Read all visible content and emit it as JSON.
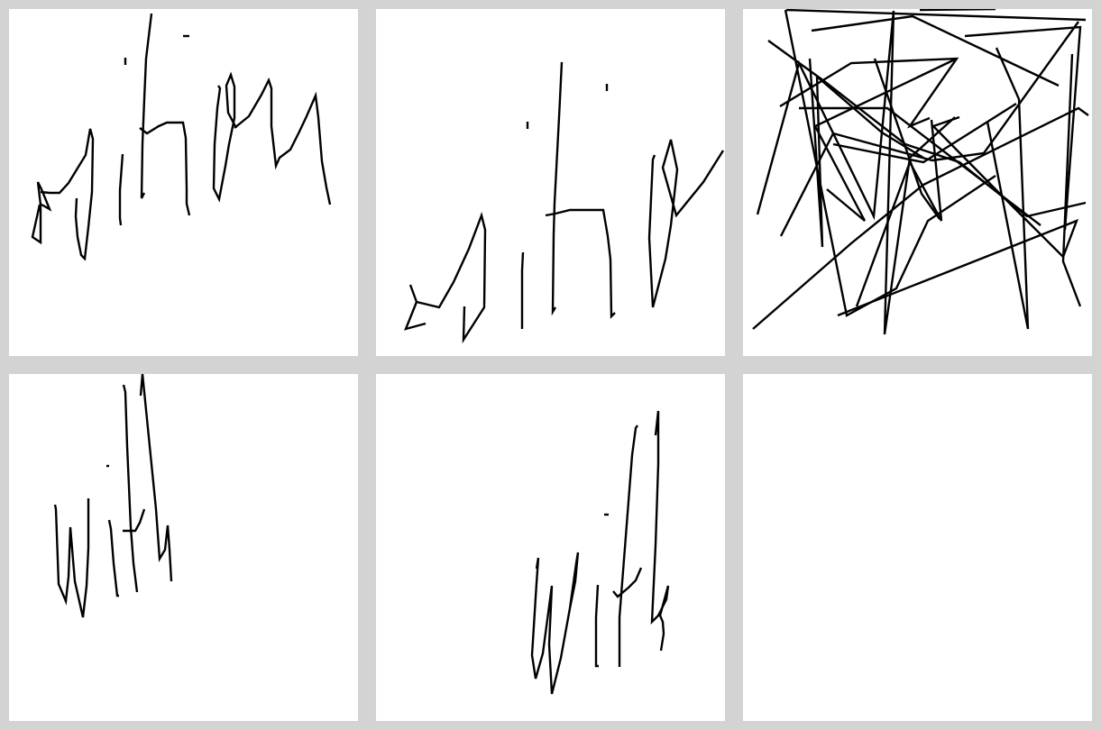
{
  "canvas": {
    "background": "#d3d3d3",
    "panel_background": "#ffffff",
    "ink_color": "#000000"
  },
  "panels": [
    {
      "id": "p1",
      "content": "handwriting-strokes",
      "drawn": true
    },
    {
      "id": "p2",
      "content": "handwriting-strokes",
      "drawn": true
    },
    {
      "id": "p3",
      "content": "scribble-strokes",
      "drawn": true
    },
    {
      "id": "p4",
      "content": "handwriting-strokes",
      "drawn": true
    },
    {
      "id": "p5",
      "content": "handwriting-strokes",
      "drawn": true
    },
    {
      "id": "p6",
      "content": "empty",
      "drawn": false
    }
  ]
}
